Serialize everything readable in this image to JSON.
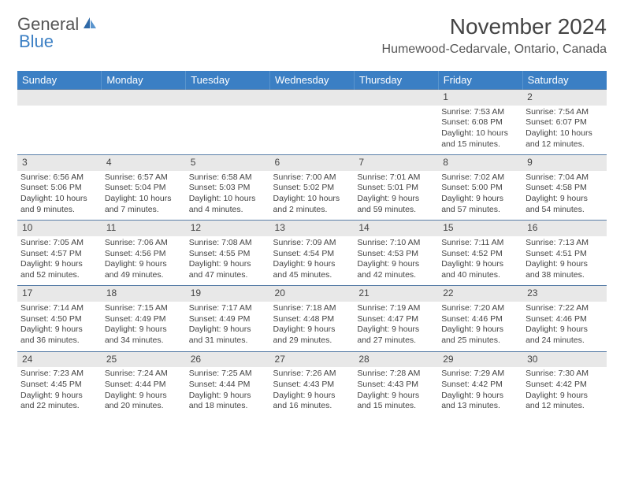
{
  "logo": {
    "general": "General",
    "blue": "Blue"
  },
  "title": "November 2024",
  "subtitle": "Humewood-Cedarvale, Ontario, Canada",
  "colors": {
    "header_bg": "#3b7fc4",
    "header_text": "#ffffff",
    "daynum_bg": "#e8e8e8",
    "border": "#5a7fa8",
    "text": "#444444"
  },
  "weekdays": [
    "Sunday",
    "Monday",
    "Tuesday",
    "Wednesday",
    "Thursday",
    "Friday",
    "Saturday"
  ],
  "weeks": [
    [
      null,
      null,
      null,
      null,
      null,
      {
        "n": "1",
        "sr": "Sunrise: 7:53 AM",
        "ss": "Sunset: 6:08 PM",
        "d1": "Daylight: 10 hours",
        "d2": "and 15 minutes."
      },
      {
        "n": "2",
        "sr": "Sunrise: 7:54 AM",
        "ss": "Sunset: 6:07 PM",
        "d1": "Daylight: 10 hours",
        "d2": "and 12 minutes."
      }
    ],
    [
      {
        "n": "3",
        "sr": "Sunrise: 6:56 AM",
        "ss": "Sunset: 5:06 PM",
        "d1": "Daylight: 10 hours",
        "d2": "and 9 minutes."
      },
      {
        "n": "4",
        "sr": "Sunrise: 6:57 AM",
        "ss": "Sunset: 5:04 PM",
        "d1": "Daylight: 10 hours",
        "d2": "and 7 minutes."
      },
      {
        "n": "5",
        "sr": "Sunrise: 6:58 AM",
        "ss": "Sunset: 5:03 PM",
        "d1": "Daylight: 10 hours",
        "d2": "and 4 minutes."
      },
      {
        "n": "6",
        "sr": "Sunrise: 7:00 AM",
        "ss": "Sunset: 5:02 PM",
        "d1": "Daylight: 10 hours",
        "d2": "and 2 minutes."
      },
      {
        "n": "7",
        "sr": "Sunrise: 7:01 AM",
        "ss": "Sunset: 5:01 PM",
        "d1": "Daylight: 9 hours",
        "d2": "and 59 minutes."
      },
      {
        "n": "8",
        "sr": "Sunrise: 7:02 AM",
        "ss": "Sunset: 5:00 PM",
        "d1": "Daylight: 9 hours",
        "d2": "and 57 minutes."
      },
      {
        "n": "9",
        "sr": "Sunrise: 7:04 AM",
        "ss": "Sunset: 4:58 PM",
        "d1": "Daylight: 9 hours",
        "d2": "and 54 minutes."
      }
    ],
    [
      {
        "n": "10",
        "sr": "Sunrise: 7:05 AM",
        "ss": "Sunset: 4:57 PM",
        "d1": "Daylight: 9 hours",
        "d2": "and 52 minutes."
      },
      {
        "n": "11",
        "sr": "Sunrise: 7:06 AM",
        "ss": "Sunset: 4:56 PM",
        "d1": "Daylight: 9 hours",
        "d2": "and 49 minutes."
      },
      {
        "n": "12",
        "sr": "Sunrise: 7:08 AM",
        "ss": "Sunset: 4:55 PM",
        "d1": "Daylight: 9 hours",
        "d2": "and 47 minutes."
      },
      {
        "n": "13",
        "sr": "Sunrise: 7:09 AM",
        "ss": "Sunset: 4:54 PM",
        "d1": "Daylight: 9 hours",
        "d2": "and 45 minutes."
      },
      {
        "n": "14",
        "sr": "Sunrise: 7:10 AM",
        "ss": "Sunset: 4:53 PM",
        "d1": "Daylight: 9 hours",
        "d2": "and 42 minutes."
      },
      {
        "n": "15",
        "sr": "Sunrise: 7:11 AM",
        "ss": "Sunset: 4:52 PM",
        "d1": "Daylight: 9 hours",
        "d2": "and 40 minutes."
      },
      {
        "n": "16",
        "sr": "Sunrise: 7:13 AM",
        "ss": "Sunset: 4:51 PM",
        "d1": "Daylight: 9 hours",
        "d2": "and 38 minutes."
      }
    ],
    [
      {
        "n": "17",
        "sr": "Sunrise: 7:14 AM",
        "ss": "Sunset: 4:50 PM",
        "d1": "Daylight: 9 hours",
        "d2": "and 36 minutes."
      },
      {
        "n": "18",
        "sr": "Sunrise: 7:15 AM",
        "ss": "Sunset: 4:49 PM",
        "d1": "Daylight: 9 hours",
        "d2": "and 34 minutes."
      },
      {
        "n": "19",
        "sr": "Sunrise: 7:17 AM",
        "ss": "Sunset: 4:49 PM",
        "d1": "Daylight: 9 hours",
        "d2": "and 31 minutes."
      },
      {
        "n": "20",
        "sr": "Sunrise: 7:18 AM",
        "ss": "Sunset: 4:48 PM",
        "d1": "Daylight: 9 hours",
        "d2": "and 29 minutes."
      },
      {
        "n": "21",
        "sr": "Sunrise: 7:19 AM",
        "ss": "Sunset: 4:47 PM",
        "d1": "Daylight: 9 hours",
        "d2": "and 27 minutes."
      },
      {
        "n": "22",
        "sr": "Sunrise: 7:20 AM",
        "ss": "Sunset: 4:46 PM",
        "d1": "Daylight: 9 hours",
        "d2": "and 25 minutes."
      },
      {
        "n": "23",
        "sr": "Sunrise: 7:22 AM",
        "ss": "Sunset: 4:46 PM",
        "d1": "Daylight: 9 hours",
        "d2": "and 24 minutes."
      }
    ],
    [
      {
        "n": "24",
        "sr": "Sunrise: 7:23 AM",
        "ss": "Sunset: 4:45 PM",
        "d1": "Daylight: 9 hours",
        "d2": "and 22 minutes."
      },
      {
        "n": "25",
        "sr": "Sunrise: 7:24 AM",
        "ss": "Sunset: 4:44 PM",
        "d1": "Daylight: 9 hours",
        "d2": "and 20 minutes."
      },
      {
        "n": "26",
        "sr": "Sunrise: 7:25 AM",
        "ss": "Sunset: 4:44 PM",
        "d1": "Daylight: 9 hours",
        "d2": "and 18 minutes."
      },
      {
        "n": "27",
        "sr": "Sunrise: 7:26 AM",
        "ss": "Sunset: 4:43 PM",
        "d1": "Daylight: 9 hours",
        "d2": "and 16 minutes."
      },
      {
        "n": "28",
        "sr": "Sunrise: 7:28 AM",
        "ss": "Sunset: 4:43 PM",
        "d1": "Daylight: 9 hours",
        "d2": "and 15 minutes."
      },
      {
        "n": "29",
        "sr": "Sunrise: 7:29 AM",
        "ss": "Sunset: 4:42 PM",
        "d1": "Daylight: 9 hours",
        "d2": "and 13 minutes."
      },
      {
        "n": "30",
        "sr": "Sunrise: 7:30 AM",
        "ss": "Sunset: 4:42 PM",
        "d1": "Daylight: 9 hours",
        "d2": "and 12 minutes."
      }
    ]
  ]
}
